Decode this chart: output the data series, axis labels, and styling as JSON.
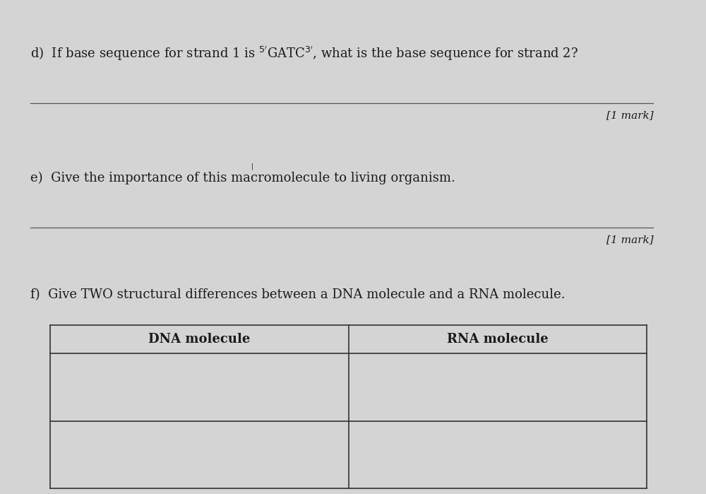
{
  "background_color": "#d4d4d4",
  "page_color": "#e8e8e8",
  "text_color": "#1a1a1a",
  "fig_width": 10.0,
  "fig_height": 6.99,
  "mark_d": "[1 mark]",
  "mark_e": "[1 mark]",
  "col1_header": "DNA molecule",
  "col2_header": "RNA molecule",
  "line_color": "#555555",
  "table_line_color": "#333333",
  "mark_fontsize": 11,
  "body_fontsize": 13
}
